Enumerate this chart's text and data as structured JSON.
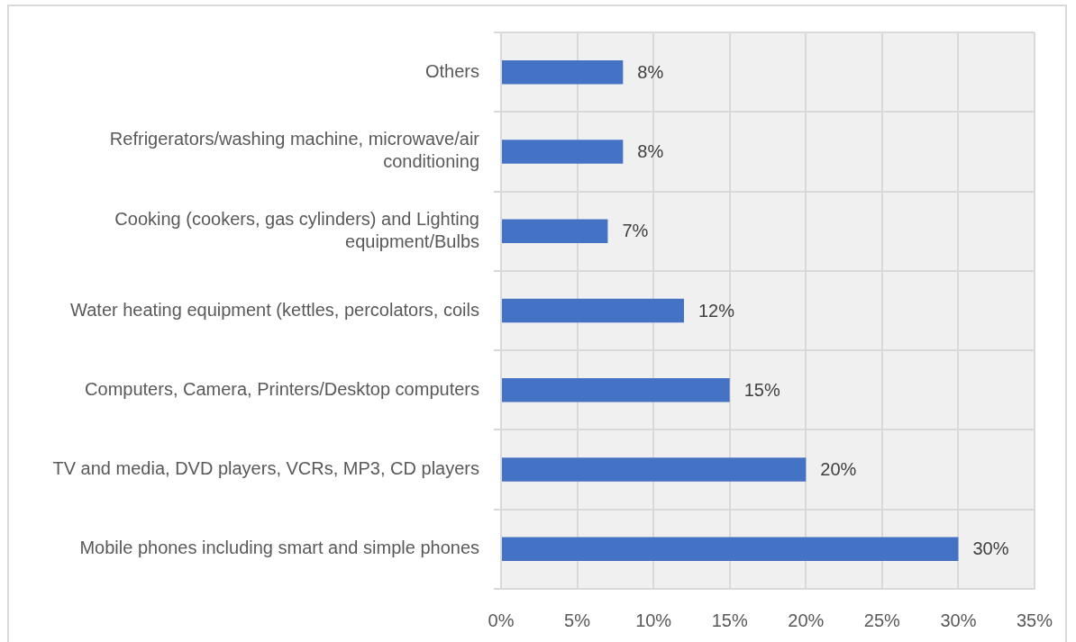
{
  "chart_data": {
    "type": "bar",
    "orientation": "horizontal",
    "categories": [
      "Others",
      "Refrigerators/washing machine, microwave/air conditioning",
      "Cooking (cookers, gas cylinders) and Lighting equipment/Bulbs",
      "Water heating equipment (kettles, percolators, coils",
      "Computers, Camera, Printers/Desktop computers",
      "TV and media, DVD players, VCRs, MP3, CD players",
      "Mobile phones including smart and simple phones"
    ],
    "values": [
      8,
      8,
      7,
      12,
      15,
      20,
      30
    ],
    "color": "#4472c4",
    "value_labels": [
      "8%",
      "8%",
      "7%",
      "12%",
      "15%",
      "20%",
      "30%"
    ],
    "xlim": [
      0,
      35
    ],
    "xticks": [
      {
        "value": 0,
        "label": "0%"
      },
      {
        "value": 5,
        "label": "5%"
      },
      {
        "value": 10,
        "label": "10%"
      },
      {
        "value": 15,
        "label": "15%"
      },
      {
        "value": 20,
        "label": "20%"
      },
      {
        "value": 25,
        "label": "25%"
      },
      {
        "value": 30,
        "label": "30%"
      },
      {
        "value": 35,
        "label": "35%"
      }
    ],
    "grid": true
  }
}
